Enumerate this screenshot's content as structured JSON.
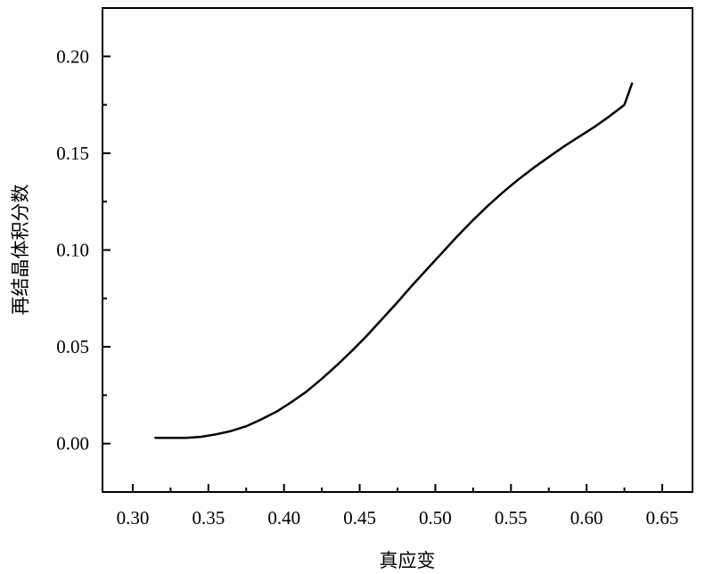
{
  "chart_data": {
    "type": "line",
    "xlabel": "真应变",
    "ylabel": "再结晶体积分数",
    "xlim": [
      0.28,
      0.67
    ],
    "ylim": [
      -0.025,
      0.225
    ],
    "x_ticks": [
      0.3,
      0.35,
      0.4,
      0.45,
      0.5,
      0.55,
      0.6,
      0.65
    ],
    "x_tick_labels": [
      "0.30",
      "0.35",
      "0.40",
      "0.45",
      "0.50",
      "0.55",
      "0.60",
      "0.65"
    ],
    "y_ticks": [
      0.0,
      0.05,
      0.1,
      0.15,
      0.2
    ],
    "y_tick_labels": [
      "0.00",
      "0.05",
      "0.10",
      "0.15",
      "0.20"
    ],
    "grid": false,
    "legend": "none",
    "colors": {
      "line": "#000000",
      "axis": "#000000"
    },
    "series": [
      {
        "x": [
          0.315,
          0.325,
          0.335,
          0.345,
          0.355,
          0.365,
          0.375,
          0.385,
          0.395,
          0.405,
          0.415,
          0.425,
          0.435,
          0.445,
          0.455,
          0.465,
          0.475,
          0.485,
          0.495,
          0.505,
          0.515,
          0.525,
          0.535,
          0.545,
          0.555,
          0.565,
          0.575,
          0.585,
          0.595,
          0.605,
          0.615,
          0.625,
          0.63
        ],
        "y": [
          0.003,
          0.003,
          0.003,
          0.0035,
          0.0048,
          0.0065,
          0.009,
          0.0125,
          0.0165,
          0.0215,
          0.027,
          0.0335,
          0.0405,
          0.048,
          0.056,
          0.0645,
          0.073,
          0.082,
          0.0905,
          0.099,
          0.1075,
          0.1155,
          0.123,
          0.13,
          0.1365,
          0.1425,
          0.148,
          0.1535,
          0.1585,
          0.1635,
          0.169,
          0.175,
          0.186
        ]
      }
    ]
  }
}
